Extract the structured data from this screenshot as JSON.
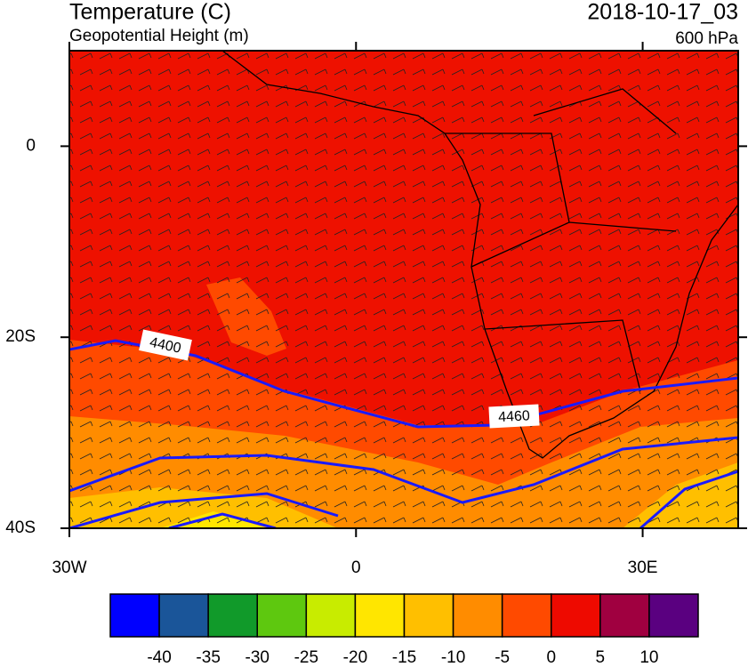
{
  "header": {
    "title": "Temperature (C)",
    "subtitle": "Geopotential Height (m)",
    "valid_time": "2018-10-17_03",
    "level": "600 hPa"
  },
  "map": {
    "xlim": [
      -30,
      40
    ],
    "ylim": [
      -40,
      10
    ],
    "xticks": [
      {
        "value": -30,
        "label": "30W"
      },
      0,
      {
        "value": 30,
        "label": "30E"
      }
    ],
    "yticks": [
      0,
      {
        "value": -20,
        "label": "20S"
      },
      {
        "value": -40,
        "label": "40S"
      }
    ],
    "contour_labels": [
      "4400",
      "4460"
    ]
  },
  "colorbar": {
    "levels": [
      -40,
      -35,
      -30,
      -25,
      -20,
      -15,
      -10,
      -5,
      0,
      5,
      10
    ],
    "colors": [
      "#0000ff",
      "#1a5599",
      "#119a2a",
      "#5ec80f",
      "#c8ec00",
      "#ffe600",
      "#ffbf00",
      "#ff8c00",
      "#ff4a00",
      "#ee0a00",
      "#a00040",
      "#5a0080"
    ]
  }
}
